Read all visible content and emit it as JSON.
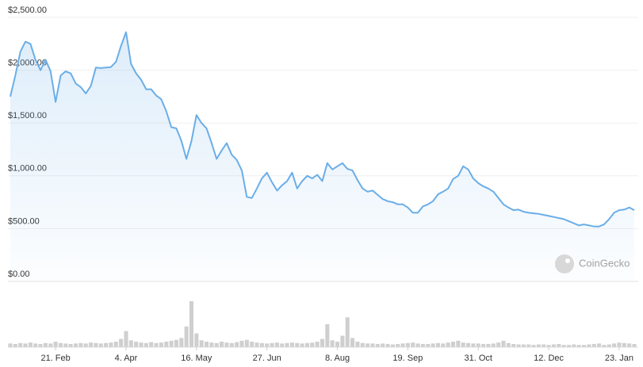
{
  "chart_data": {
    "type": "line",
    "color": "#6aaee8",
    "volume_color": "#cfcfcf",
    "grid": true,
    "watermark": "CoinGecko",
    "categories": [
      null,
      null,
      null,
      null,
      null,
      null,
      null,
      null,
      null,
      "21. Feb",
      null,
      null,
      null,
      null,
      null,
      null,
      null,
      null,
      null,
      null,
      null,
      null,
      null,
      "4. Apr",
      null,
      null,
      null,
      null,
      null,
      null,
      null,
      null,
      null,
      null,
      null,
      null,
      null,
      "16. May",
      null,
      null,
      null,
      null,
      null,
      null,
      null,
      null,
      null,
      null,
      null,
      null,
      null,
      "27. Jun",
      null,
      null,
      null,
      null,
      null,
      null,
      null,
      null,
      null,
      null,
      null,
      null,
      null,
      "8. Aug",
      null,
      null,
      null,
      null,
      null,
      null,
      null,
      null,
      null,
      null,
      null,
      null,
      null,
      "19. Sep",
      null,
      null,
      null,
      null,
      null,
      null,
      null,
      null,
      null,
      null,
      null,
      null,
      null,
      "31. Oct",
      null,
      null,
      null,
      null,
      null,
      null,
      null,
      null,
      null,
      null,
      null,
      null,
      null,
      "12. Dec",
      null,
      null,
      null,
      null,
      null,
      null,
      null,
      null,
      null,
      null,
      null,
      null,
      null,
      "23. Jan",
      null,
      null,
      null
    ],
    "values": [
      1750,
      1950,
      2175,
      2270,
      2250,
      2100,
      2000,
      2100,
      1990,
      1700,
      1950,
      1990,
      1970,
      1875,
      1840,
      1780,
      1850,
      2025,
      2020,
      2025,
      2030,
      2080,
      2230,
      2360,
      2060,
      1970,
      1910,
      1820,
      1820,
      1760,
      1725,
      1610,
      1460,
      1450,
      1330,
      1160,
      1330,
      1575,
      1500,
      1450,
      1310,
      1160,
      1240,
      1310,
      1200,
      1150,
      1050,
      800,
      790,
      880,
      975,
      1030,
      940,
      860,
      910,
      950,
      1030,
      880,
      950,
      1000,
      975,
      1010,
      950,
      1120,
      1060,
      1090,
      1120,
      1065,
      1050,
      960,
      880,
      850,
      860,
      820,
      780,
      760,
      750,
      730,
      730,
      700,
      650,
      650,
      710,
      730,
      760,
      825,
      850,
      880,
      970,
      1000,
      1090,
      1060,
      975,
      930,
      900,
      880,
      850,
      790,
      730,
      700,
      675,
      680,
      660,
      650,
      645,
      640,
      630,
      620,
      610,
      600,
      590,
      570,
      550,
      530,
      540,
      530,
      520,
      520,
      540,
      590,
      650,
      675,
      680,
      700,
      675
    ],
    "volume": [
      8,
      7,
      9,
      8,
      10,
      8,
      7,
      9,
      8,
      12,
      9,
      8,
      7,
      8,
      9,
      8,
      10,
      9,
      8,
      9,
      10,
      12,
      18,
      35,
      15,
      12,
      10,
      9,
      11,
      9,
      10,
      12,
      14,
      16,
      20,
      45,
      100,
      30,
      15,
      12,
      10,
      9,
      12,
      10,
      9,
      11,
      14,
      16,
      12,
      10,
      9,
      8,
      9,
      10,
      8,
      9,
      10,
      9,
      8,
      9,
      10,
      12,
      18,
      50,
      15,
      12,
      25,
      65,
      20,
      12,
      9,
      8,
      8,
      7,
      8,
      7,
      6,
      7,
      8,
      9,
      10,
      8,
      7,
      7,
      8,
      9,
      8,
      10,
      12,
      14,
      10,
      9,
      8,
      8,
      7,
      7,
      8,
      10,
      14,
      9,
      7,
      6,
      6,
      6,
      5,
      6,
      6,
      5,
      6,
      7,
      5,
      5,
      6,
      5,
      5,
      6,
      7,
      8,
      5,
      6,
      8,
      10,
      9,
      8,
      7
    ],
    "ylim": [
      0,
      2500
    ],
    "yticks": [
      {
        "value": 0,
        "label": "$0.00"
      },
      {
        "value": 500,
        "label": "$500.00"
      },
      {
        "value": 1000,
        "label": "$1,000.00"
      },
      {
        "value": 1500,
        "label": "$1,500.00"
      },
      {
        "value": 2000,
        "label": "$2,000.00"
      },
      {
        "value": 2500,
        "label": "$2,500.00"
      }
    ]
  }
}
